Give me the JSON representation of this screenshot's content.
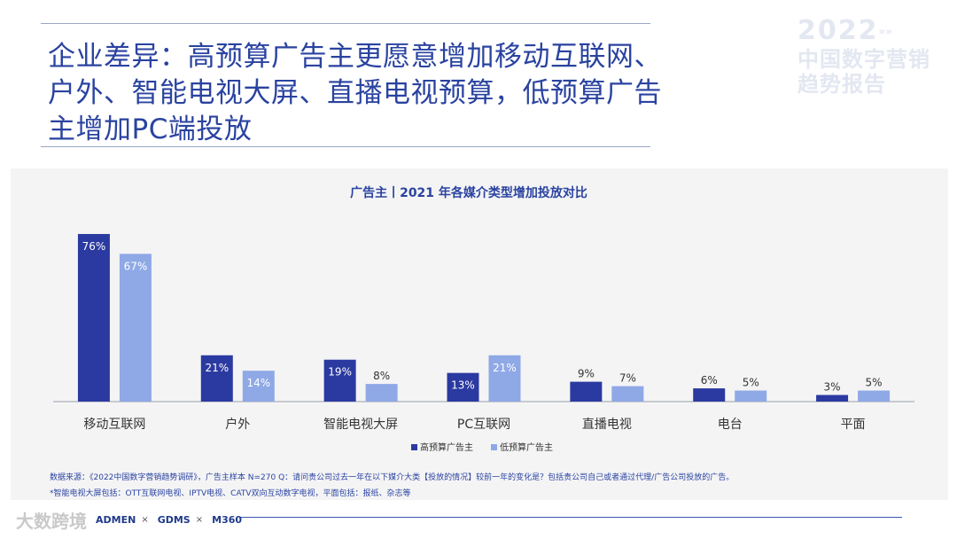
{
  "header": {
    "title": "企业差异：高预算广告主更愿意增加移动互联网、户外、智能电视大屏、直播电视预算，低预算广告主增加PC端投放"
  },
  "watermark": {
    "year": "2022",
    "arrows": "»»",
    "line1": "中国数字营销",
    "line2": "趋势报告"
  },
  "chart_data": {
    "type": "bar",
    "title": "广告主丨2021 年各媒介类型增加投放对比",
    "categories": [
      "移动互联网",
      "户外",
      "智能电视大屏",
      "PC互联网",
      "直播电视",
      "电台",
      "平面"
    ],
    "series": [
      {
        "name": "高预算广告主",
        "color": "#2b3aa0",
        "values": [
          76,
          21,
          19,
          13,
          9,
          6,
          3
        ]
      },
      {
        "name": "低预算广告主",
        "color": "#8fa8e6",
        "values": [
          67,
          14,
          8,
          21,
          7,
          5,
          5
        ]
      }
    ],
    "ylim": [
      0,
      80
    ],
    "value_suffix": "%",
    "legend_position": "bottom-center"
  },
  "notes": {
    "source": "数据来源：《2022中国数字营销趋势调研》，广告主样本 N=270    Q：请问贵公司过去一年在以下媒介大类【投放的情况】较前一年的变化是？包括贵公司自己或者通过代理/广告公司投放的广告。",
    "definition": "*智能电视大屏包括：OTT互联网电视、IPTV电视、CATV双向互动数字电视，平面包括：报纸、杂志等"
  },
  "footer": {
    "wm_text": "大数跨境",
    "logo1": "ADMEN",
    "cross1": "×",
    "logo2": "GDMS",
    "cross2": "×",
    "logo3": "M360"
  }
}
